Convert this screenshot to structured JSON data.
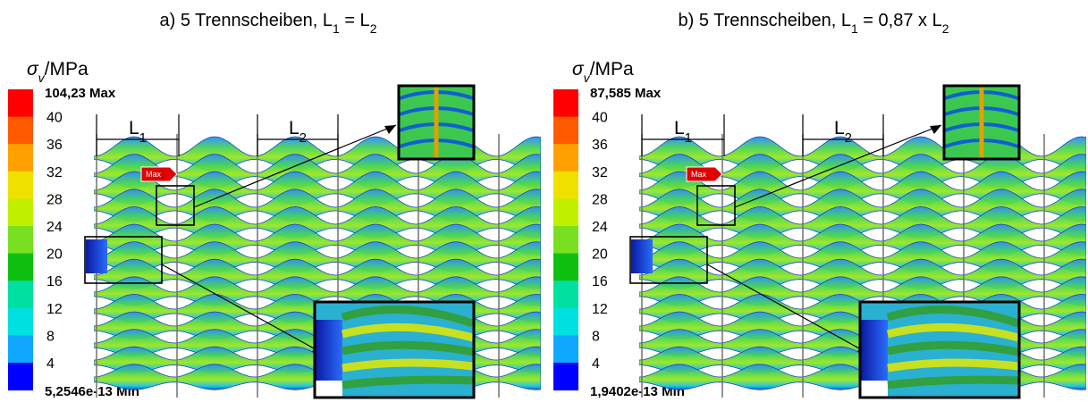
{
  "panels": [
    {
      "title": [
        "a) 5 Trennscheiben, L",
        "1",
        " = L",
        "2"
      ],
      "quantity": [
        "σ",
        "v",
        "/MPa"
      ],
      "max_label": "104,23 Max",
      "ticks": [
        "40",
        "36",
        "32",
        "28",
        "24",
        "20",
        "16",
        "12",
        "8",
        "4"
      ],
      "min_label": "5,2546e-13 Min",
      "dimensions": [
        [
          "L",
          "1"
        ],
        [
          "L",
          "2"
        ]
      ],
      "max_tag": "Max"
    },
    {
      "title": [
        "b) 5 Trennscheiben, L",
        "1",
        " = 0,87 x L",
        "2"
      ],
      "quantity": [
        "σ",
        "v",
        "/MPa"
      ],
      "max_label": "87,585 Max",
      "ticks": [
        "40",
        "36",
        "32",
        "28",
        "24",
        "20",
        "16",
        "12",
        "8",
        "4"
      ],
      "min_label": "1,9402e-13 Min",
      "dimensions": [
        [
          "L",
          "1"
        ],
        [
          "L",
          "2"
        ]
      ],
      "max_tag": "Max"
    }
  ]
}
